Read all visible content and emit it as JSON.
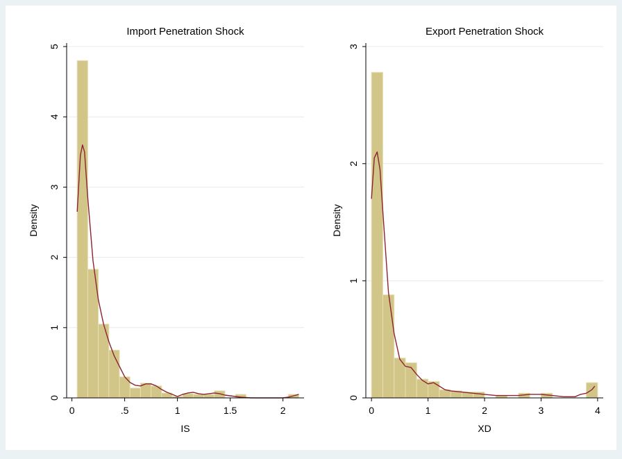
{
  "chart_data": [
    {
      "type": "bar",
      "title": "Import Penetration Shock",
      "xlabel": "IS",
      "ylabel": "Density",
      "xlim": [
        -0.05,
        2.2
      ],
      "ylim": [
        0,
        5.05
      ],
      "xticks": [
        0,
        0.5,
        1,
        1.5,
        2
      ],
      "xtick_labels": [
        "0",
        ".5",
        "1",
        "1.5",
        "2"
      ],
      "yticks": [
        0,
        1,
        2,
        3,
        4,
        5
      ],
      "ytick_labels": [
        "0",
        "1",
        "2",
        "3",
        "4",
        "5"
      ],
      "grid": true,
      "bar_color": "#d2c588",
      "bar_edge_color": "#e7deb1",
      "line_color": "#8b2331",
      "bin_edges": [
        0.05,
        0.15,
        0.25,
        0.35,
        0.45,
        0.55,
        0.65,
        0.75,
        0.85,
        0.95,
        1.05,
        1.15,
        1.25,
        1.35,
        1.45,
        1.55,
        1.65,
        1.75,
        1.85,
        1.95,
        2.05,
        2.15
      ],
      "values": [
        4.8,
        1.83,
        1.05,
        0.68,
        0.3,
        0.14,
        0.21,
        0.17,
        0.07,
        0.02,
        0.06,
        0.05,
        0.05,
        0.1,
        0.0,
        0.05,
        0.0,
        0.0,
        0.0,
        0.0,
        0.05
      ],
      "density_curve": {
        "x": [
          0.05,
          0.08,
          0.1,
          0.12,
          0.15,
          0.2,
          0.25,
          0.3,
          0.35,
          0.4,
          0.45,
          0.5,
          0.55,
          0.6,
          0.65,
          0.7,
          0.75,
          0.8,
          0.85,
          0.9,
          0.95,
          1.0,
          1.05,
          1.1,
          1.15,
          1.2,
          1.25,
          1.3,
          1.35,
          1.4,
          1.45,
          1.5,
          1.55,
          1.6,
          1.7,
          1.8,
          1.9,
          2.0,
          2.05,
          2.1,
          2.15
        ],
        "y": [
          2.65,
          3.45,
          3.6,
          3.5,
          2.85,
          1.95,
          1.4,
          1.05,
          0.8,
          0.6,
          0.45,
          0.3,
          0.22,
          0.18,
          0.17,
          0.2,
          0.2,
          0.17,
          0.12,
          0.08,
          0.05,
          0.02,
          0.05,
          0.07,
          0.08,
          0.06,
          0.05,
          0.06,
          0.07,
          0.06,
          0.04,
          0.03,
          0.02,
          0.01,
          0.0,
          0.0,
          0.0,
          0.0,
          0.01,
          0.03,
          0.05
        ]
      }
    },
    {
      "type": "bar",
      "title": "Export Penetration Shock",
      "xlabel": "XD",
      "ylabel": "Density",
      "xlim": [
        -0.1,
        4.1
      ],
      "ylim": [
        0,
        3.03
      ],
      "xticks": [
        0,
        1,
        2,
        3,
        4
      ],
      "xtick_labels": [
        "0",
        "1",
        "2",
        "3",
        "4"
      ],
      "yticks": [
        0,
        1,
        2,
        3
      ],
      "ytick_labels": [
        "0",
        "1",
        "2",
        "3"
      ],
      "grid": true,
      "bar_color": "#d2c588",
      "bar_edge_color": "#e7deb1",
      "line_color": "#8b2331",
      "bin_edges": [
        0.0,
        0.2,
        0.4,
        0.6,
        0.8,
        1.0,
        1.2,
        1.4,
        1.6,
        1.8,
        2.0,
        2.2,
        2.4,
        2.6,
        2.8,
        3.0,
        3.2,
        3.4,
        3.6,
        3.8,
        4.0
      ],
      "values": [
        2.78,
        0.88,
        0.34,
        0.3,
        0.16,
        0.14,
        0.07,
        0.06,
        0.05,
        0.05,
        0.0,
        0.02,
        0.0,
        0.04,
        0.0,
        0.04,
        0.0,
        0.0,
        0.0,
        0.13
      ],
      "density_curve": {
        "x": [
          0.0,
          0.05,
          0.1,
          0.15,
          0.2,
          0.3,
          0.4,
          0.5,
          0.6,
          0.7,
          0.8,
          0.9,
          1.0,
          1.1,
          1.2,
          1.3,
          1.4,
          1.6,
          1.8,
          2.0,
          2.2,
          2.4,
          2.6,
          2.8,
          3.0,
          3.2,
          3.4,
          3.6,
          3.7,
          3.8,
          3.9,
          3.95
        ],
        "y": [
          1.7,
          2.05,
          2.1,
          1.95,
          1.6,
          0.9,
          0.55,
          0.33,
          0.27,
          0.26,
          0.2,
          0.15,
          0.12,
          0.13,
          0.1,
          0.07,
          0.06,
          0.05,
          0.04,
          0.03,
          0.02,
          0.02,
          0.02,
          0.03,
          0.03,
          0.02,
          0.01,
          0.01,
          0.03,
          0.04,
          0.07,
          0.1
        ]
      }
    }
  ]
}
